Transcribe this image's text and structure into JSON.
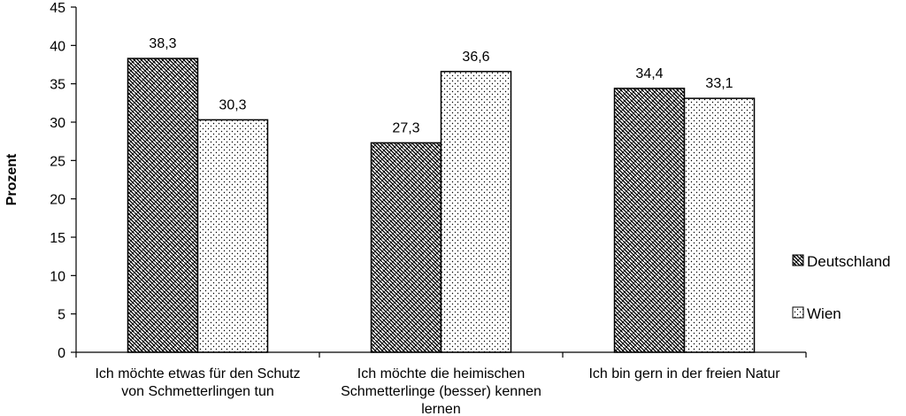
{
  "chart_data": {
    "type": "bar",
    "ylabel": "Prozent",
    "ylim": [
      0,
      45
    ],
    "ytick_step": 5,
    "grid": false,
    "legend_position": "right",
    "categories": [
      [
        "Ich möchte etwas für den Schutz",
        "von Schmetterlingen tun"
      ],
      [
        "Ich möchte die heimischen",
        "Schmetterlinge (besser) kennen",
        "lernen"
      ],
      [
        "Ich bin gern in der freien Natur"
      ]
    ],
    "series": [
      {
        "name": "Deutschland",
        "values": [
          38.3,
          27.3,
          34.4
        ],
        "labels": [
          "38,3",
          "27,3",
          "34,4"
        ],
        "pattern": "basketweave"
      },
      {
        "name": "Wien",
        "values": [
          30.3,
          36.6,
          33.1
        ],
        "labels": [
          "30,3",
          "36,6",
          "33,1"
        ],
        "pattern": "dots"
      }
    ]
  }
}
